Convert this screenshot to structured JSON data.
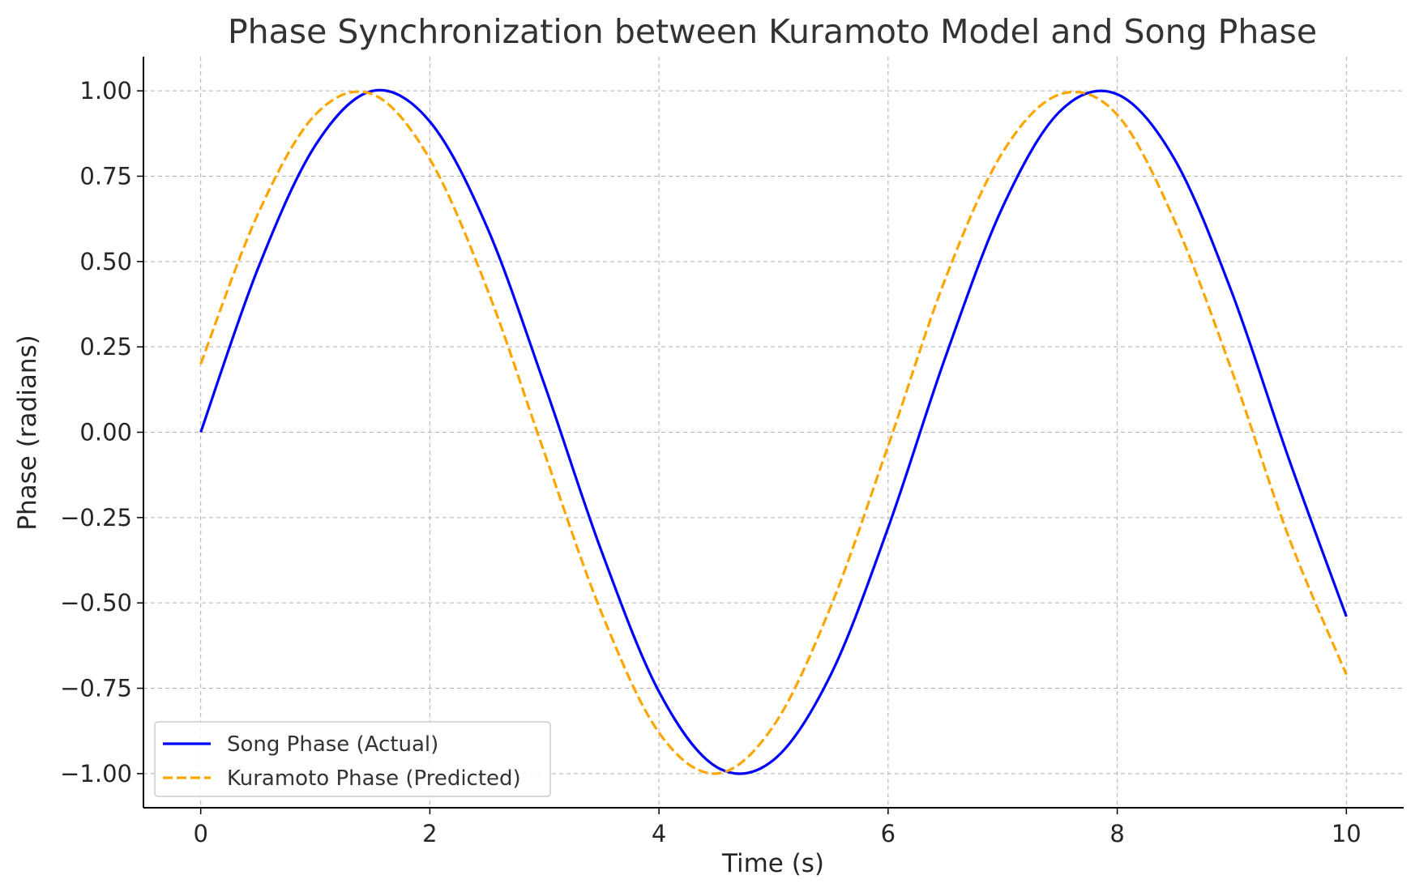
{
  "chart_data": {
    "type": "line",
    "title": "Phase Synchronization between Kuramoto Model and Song Phase",
    "xlabel": "Time (s)",
    "ylabel": "Phase (radians)",
    "xlim": [
      -0.5,
      10.5
    ],
    "ylim": [
      -1.1,
      1.1
    ],
    "x_ticks": [
      0,
      2,
      4,
      6,
      8,
      10
    ],
    "x_tick_labels": [
      "0",
      "2",
      "4",
      "6",
      "8",
      "10"
    ],
    "y_ticks": [
      1.0,
      0.75,
      0.5,
      0.25,
      0.0,
      -0.25,
      -0.5,
      -0.75,
      -1.0
    ],
    "y_tick_labels": [
      "1.00",
      "0.75",
      "0.50",
      "0.25",
      "0.00",
      "−0.25",
      "−0.50",
      "−0.75",
      "−1.00"
    ],
    "grid": true,
    "legend_position": "bottom-left",
    "x": [
      0.0,
      0.5,
      1.0,
      1.5,
      2.0,
      2.5,
      3.0,
      3.5,
      4.0,
      4.5,
      5.0,
      5.5,
      6.0,
      6.5,
      7.0,
      7.5,
      8.0,
      8.5,
      9.0,
      9.5,
      10.0
    ],
    "series": [
      {
        "name": "Song Phase (Actual)",
        "color": "#0000ff",
        "style": "solid",
        "values": [
          0.0,
          0.48,
          0.84,
          1.0,
          0.91,
          0.6,
          0.14,
          -0.35,
          -0.76,
          -0.98,
          -0.96,
          -0.71,
          -0.28,
          0.22,
          0.66,
          0.94,
          0.99,
          0.8,
          0.41,
          -0.08,
          -0.54
        ]
      },
      {
        "name": "Kuramoto Phase (Predicted)",
        "color": "#ffa500",
        "style": "dashed",
        "values": [
          0.2,
          0.64,
          0.93,
          0.99,
          0.8,
          0.42,
          -0.06,
          -0.53,
          -0.88,
          -1.0,
          -0.86,
          -0.51,
          -0.04,
          0.45,
          0.82,
          0.99,
          0.93,
          0.62,
          0.18,
          -0.31,
          -0.71
        ]
      }
    ]
  }
}
